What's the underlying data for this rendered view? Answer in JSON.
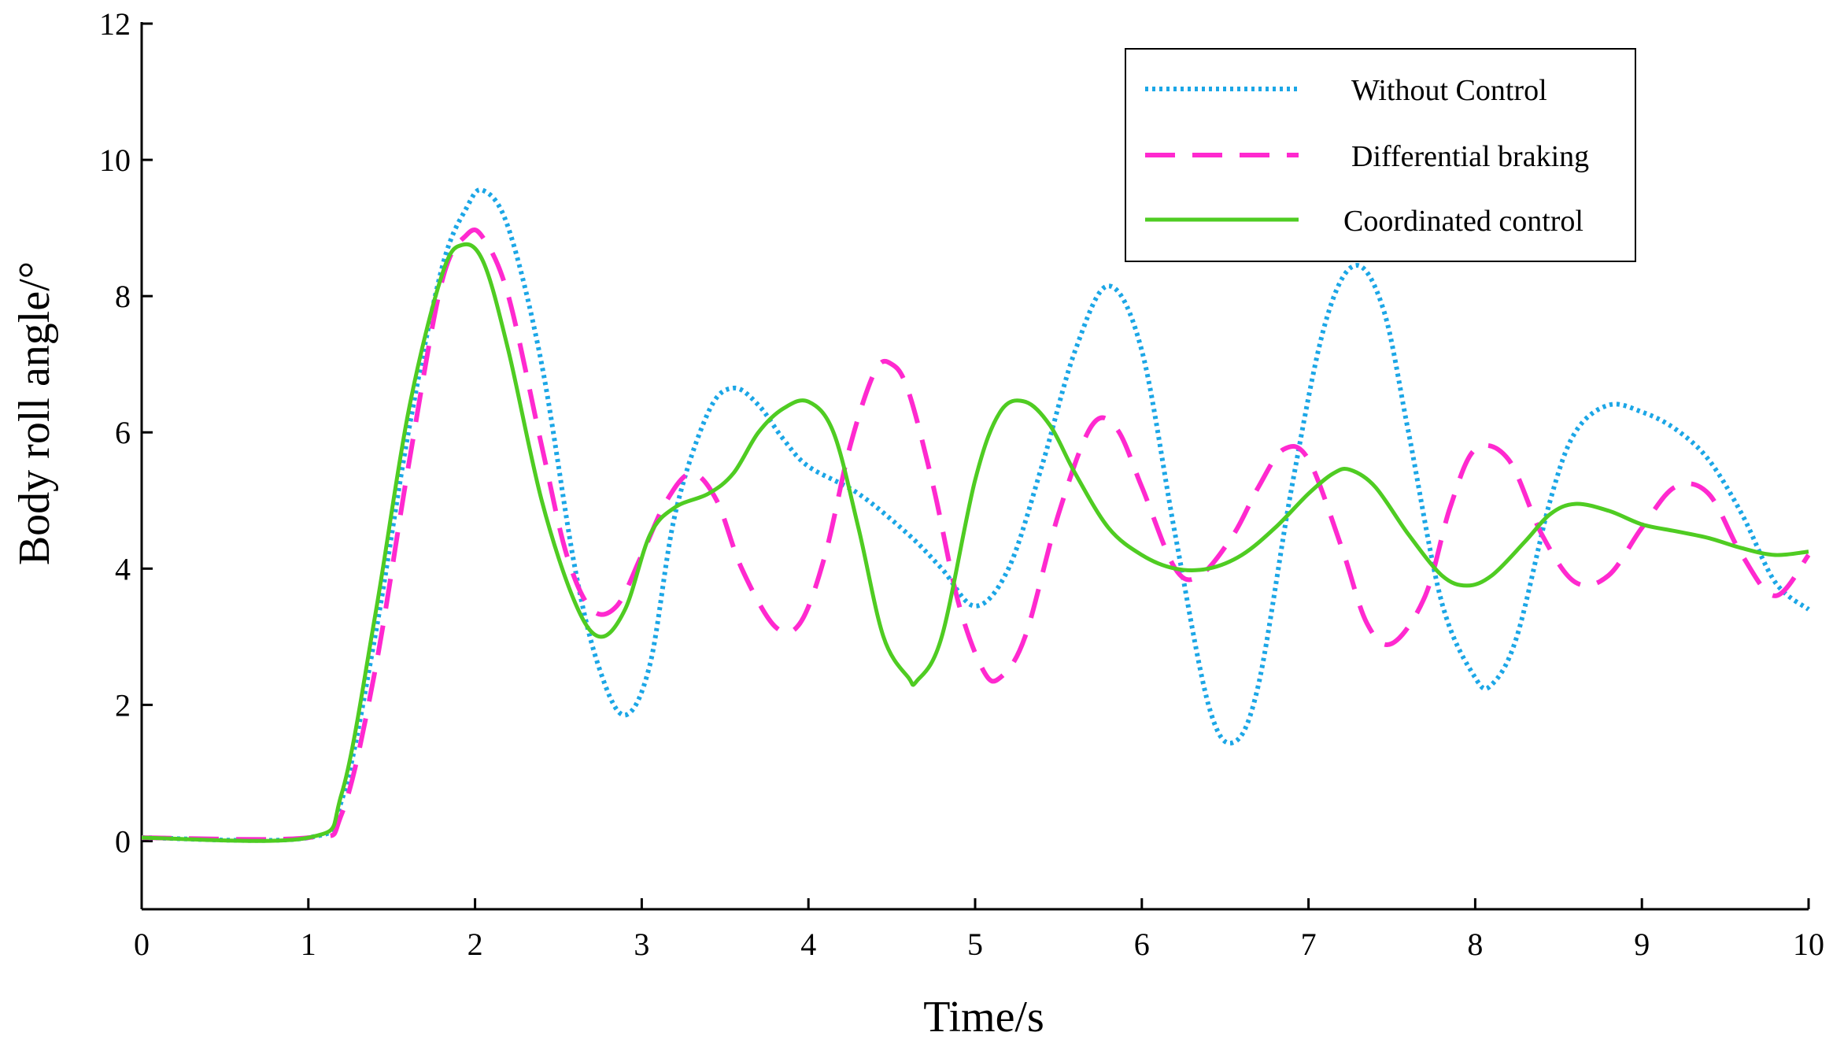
{
  "chart_data": {
    "type": "line",
    "title": "",
    "xlabel": "Time/s",
    "ylabel": "Body roll angle/°",
    "xlim": [
      0,
      10
    ],
    "ylim": [
      -1,
      12
    ],
    "xticks": [
      0,
      1,
      2,
      3,
      4,
      5,
      6,
      7,
      8,
      9,
      10
    ],
    "yticks": [
      0,
      2,
      4,
      6,
      8,
      10,
      12
    ],
    "legend_position": "top-right",
    "grid": false,
    "series": [
      {
        "name": "Without Control",
        "color": "#1ba6e6",
        "style": "dotted",
        "x": [
          0,
          1,
          1.2,
          1.4,
          1.6,
          1.8,
          1.95,
          2.05,
          2.2,
          2.4,
          2.6,
          2.75,
          2.9,
          3.05,
          3.2,
          3.4,
          3.55,
          3.7,
          3.85,
          4.0,
          4.3,
          4.6,
          4.8,
          5.0,
          5.2,
          5.4,
          5.6,
          5.8,
          6.0,
          6.2,
          6.4,
          6.55,
          6.7,
          6.9,
          7.1,
          7.28,
          7.45,
          7.6,
          7.8,
          8.0,
          8.1,
          8.25,
          8.45,
          8.6,
          8.8,
          9.0,
          9.2,
          9.4,
          9.6,
          9.8,
          10.0
        ],
        "y": [
          0.05,
          0.05,
          0.6,
          3.0,
          6.0,
          8.4,
          9.3,
          9.55,
          9.0,
          7.0,
          4.0,
          2.5,
          1.85,
          2.6,
          4.8,
          6.3,
          6.65,
          6.4,
          5.9,
          5.5,
          5.1,
          4.5,
          4.0,
          3.45,
          4.0,
          5.5,
          7.2,
          8.15,
          7.2,
          4.5,
          2.0,
          1.45,
          2.3,
          5.2,
          7.6,
          8.45,
          7.8,
          6.0,
          3.5,
          2.4,
          2.3,
          3.0,
          5.0,
          6.0,
          6.4,
          6.3,
          6.05,
          5.6,
          4.8,
          3.8,
          3.4
        ]
      },
      {
        "name": "Differential braking",
        "color": "#ff29cf",
        "style": "dashed",
        "x": [
          0,
          1,
          1.2,
          1.4,
          1.6,
          1.8,
          1.95,
          2.05,
          2.2,
          2.4,
          2.55,
          2.7,
          2.85,
          3.0,
          3.15,
          3.3,
          3.45,
          3.6,
          3.8,
          3.95,
          4.1,
          4.25,
          4.4,
          4.5,
          4.6,
          4.75,
          4.9,
          5.05,
          5.15,
          5.3,
          5.5,
          5.7,
          5.85,
          6.0,
          6.2,
          6.35,
          6.55,
          6.7,
          6.85,
          7.0,
          7.2,
          7.35,
          7.5,
          7.7,
          7.85,
          8.0,
          8.2,
          8.4,
          8.6,
          8.8,
          9.0,
          9.2,
          9.4,
          9.6,
          9.8,
          10.0
        ],
        "y": [
          0.05,
          0.05,
          0.4,
          2.5,
          5.5,
          8.2,
          8.9,
          8.85,
          8.0,
          5.8,
          4.2,
          3.4,
          3.45,
          4.2,
          5.0,
          5.4,
          5.0,
          4.0,
          3.15,
          3.2,
          4.2,
          5.8,
          6.9,
          7.0,
          6.6,
          5.2,
          3.5,
          2.5,
          2.4,
          3.0,
          4.8,
          6.1,
          6.05,
          5.2,
          4.0,
          3.9,
          4.5,
          5.2,
          5.75,
          5.6,
          4.3,
          3.2,
          2.9,
          3.6,
          4.9,
          5.75,
          5.6,
          4.5,
          3.8,
          3.9,
          4.6,
          5.2,
          5.1,
          4.2,
          3.6,
          4.2
        ]
      },
      {
        "name": "Coordinated control",
        "color": "#4fcc22",
        "style": "solid",
        "x": [
          0,
          1,
          1.2,
          1.4,
          1.6,
          1.8,
          1.92,
          2.05,
          2.2,
          2.4,
          2.6,
          2.75,
          2.9,
          3.05,
          3.2,
          3.4,
          3.55,
          3.7,
          3.85,
          4.0,
          4.15,
          4.3,
          4.45,
          4.6,
          4.65,
          4.8,
          5.0,
          5.15,
          5.3,
          5.45,
          5.6,
          5.8,
          6.0,
          6.2,
          6.4,
          6.6,
          6.8,
          7.0,
          7.15,
          7.25,
          7.4,
          7.6,
          7.8,
          7.95,
          8.1,
          8.3,
          8.45,
          8.6,
          8.8,
          9.0,
          9.2,
          9.4,
          9.6,
          9.8,
          10.0
        ],
        "y": [
          0.05,
          0.05,
          0.7,
          3.3,
          6.3,
          8.3,
          8.75,
          8.5,
          7.2,
          5.0,
          3.5,
          3.0,
          3.4,
          4.5,
          4.9,
          5.1,
          5.4,
          6.0,
          6.35,
          6.45,
          6.0,
          4.6,
          3.0,
          2.4,
          2.35,
          3.0,
          5.3,
          6.3,
          6.45,
          6.1,
          5.4,
          4.6,
          4.2,
          4.0,
          4.0,
          4.2,
          4.6,
          5.1,
          5.4,
          5.45,
          5.2,
          4.5,
          3.9,
          3.75,
          3.9,
          4.4,
          4.8,
          4.95,
          4.85,
          4.65,
          4.55,
          4.45,
          4.3,
          4.2,
          4.25
        ]
      }
    ]
  }
}
